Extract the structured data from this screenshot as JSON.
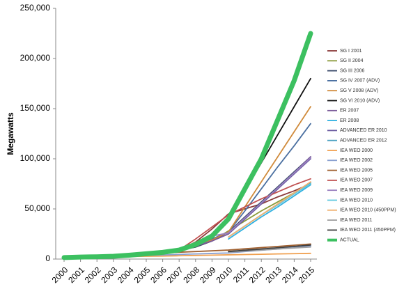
{
  "chart_data": {
    "type": "line",
    "y_label": "Megawatts",
    "x": [
      2000,
      2001,
      2002,
      2003,
      2004,
      2005,
      2006,
      2007,
      2008,
      2009,
      2010,
      2011,
      2012,
      2013,
      2014,
      2015
    ],
    "ylim": [
      0,
      250000
    ],
    "yticks": [
      0,
      {
        "value": 50000,
        "label": "50,000"
      },
      {
        "value": 100000,
        "label": "100,000"
      },
      {
        "value": 150000,
        "label": "150,000"
      },
      {
        "value": 200000,
        "label": "200,000"
      },
      {
        "value": 250000,
        "label": "250,000"
      }
    ],
    "legend": "right",
    "series": [
      {
        "name": "SG I 2001",
        "color": "#8b3a3a",
        "values": [
          null,
          2000,
          3000,
          4000,
          5000,
          6000,
          7000,
          9000,
          17000,
          30000,
          45000,
          50000,
          55000,
          62000,
          68000,
          75000
        ]
      },
      {
        "name": "SG II 2004",
        "color": "#8a9a3a",
        "values": [
          null,
          null,
          null,
          null,
          4000,
          5500,
          7000,
          9000,
          12000,
          18000,
          28000,
          38000,
          48000,
          57000,
          66000,
          75000
        ]
      },
      {
        "name": "SG III 2006",
        "color": "#3a4a6a",
        "values": [
          null,
          null,
          null,
          null,
          null,
          null,
          6500,
          8500,
          12000,
          18000,
          27000,
          42000,
          57000,
          72000,
          87000,
          102000
        ]
      },
      {
        "name": "SG IV 2007 (ADV)",
        "color": "#4a6fa0",
        "values": [
          null,
          null,
          null,
          null,
          null,
          null,
          null,
          9000,
          14000,
          20000,
          27000,
          48000,
          70000,
          92000,
          113000,
          135000
        ]
      },
      {
        "name": "SG V 2008 (ADV)",
        "color": "#d08a3a",
        "values": [
          null,
          null,
          null,
          null,
          null,
          null,
          null,
          null,
          13000,
          19000,
          27000,
          52000,
          77000,
          102000,
          127000,
          152000
        ]
      },
      {
        "name": "SG VI 2010 (ADV)",
        "color": "#111111",
        "values": [
          null,
          null,
          null,
          null,
          null,
          null,
          null,
          null,
          null,
          null,
          40000,
          68000,
          96000,
          124000,
          152000,
          180000
        ]
      },
      {
        "name": "ER 2007",
        "color": "#7a5a9a",
        "values": [
          null,
          null,
          null,
          null,
          null,
          null,
          null,
          9000,
          13000,
          18000,
          25000,
          40000,
          55000,
          70000,
          86000,
          102000
        ]
      },
      {
        "name": "ER 2008",
        "color": "#30b0e0",
        "values": [
          null,
          null,
          null,
          null,
          null,
          null,
          null,
          null,
          null,
          null,
          20000,
          31000,
          42000,
          52000,
          63000,
          74000
        ]
      },
      {
        "name": "ADVANCED ER 2010",
        "color": "#6a5aa0",
        "values": [
          null,
          null,
          null,
          null,
          null,
          null,
          null,
          null,
          null,
          null,
          25000,
          40000,
          55000,
          70000,
          85000,
          100000
        ]
      },
      {
        "name": "ADVANCED ER 2012",
        "color": "#4aa0c0",
        "values": [
          null,
          null,
          null,
          null,
          null,
          null,
          null,
          null,
          null,
          null,
          22000,
          33000,
          44000,
          54000,
          65000,
          76000
        ]
      },
      {
        "name": "IEA WEO 2000",
        "color": "#f0a050",
        "values": [
          1500,
          1800,
          2000,
          2300,
          2500,
          2800,
          3000,
          3300,
          3600,
          3900,
          4200,
          4500,
          4800,
          5100,
          5400,
          5700
        ]
      },
      {
        "name": "IEA WEO 2002",
        "color": "#8aa0d0",
        "values": [
          null,
          null,
          2300,
          2700,
          3100,
          3600,
          4100,
          4600,
          5100,
          5600,
          6100,
          7500,
          8800,
          10000,
          11500,
          13000
        ]
      },
      {
        "name": "IEA WEO 2005",
        "color": "#a06030",
        "values": [
          null,
          null,
          null,
          null,
          null,
          5300,
          6000,
          6800,
          7500,
          8200,
          9000,
          10200,
          11400,
          12600,
          13800,
          15000
        ]
      },
      {
        "name": "IEA WEO 2007",
        "color": "#c05050",
        "values": [
          null,
          null,
          null,
          null,
          null,
          null,
          null,
          9000,
          20000,
          32000,
          44000,
          52000,
          60000,
          67000,
          74000,
          80000
        ]
      },
      {
        "name": "IEA WEO 2009",
        "color": "#9a80c0",
        "values": [
          null,
          null,
          null,
          null,
          null,
          null,
          null,
          null,
          null,
          23000,
          26000,
          41000,
          56000,
          71000,
          86000,
          101000
        ]
      },
      {
        "name": "IEA WEO 2010",
        "color": "#60c8e0",
        "values": [
          null,
          null,
          null,
          null,
          null,
          null,
          null,
          null,
          null,
          null,
          22000,
          33000,
          44000,
          54000,
          65000,
          75000
        ]
      },
      {
        "name": "IEA WEO 2010 (450PPM)",
        "color": "#f0b070",
        "values": [
          null,
          null,
          null,
          null,
          null,
          null,
          null,
          null,
          null,
          null,
          22000,
          33000,
          44000,
          55000,
          66000,
          77000
        ]
      },
      {
        "name": "IEA WEO 2011",
        "color": "#a0a0a0",
        "values": [
          null,
          null,
          null,
          null,
          null,
          null,
          null,
          null,
          null,
          null,
          7000,
          8000,
          9000,
          10000,
          11000,
          12000
        ]
      },
      {
        "name": "IEA WEO 2011 (450PPM)",
        "color": "#404040",
        "values": [
          null,
          null,
          null,
          null,
          null,
          null,
          null,
          null,
          null,
          null,
          7500,
          8800,
          10000,
          11300,
          12600,
          14000
        ]
      },
      {
        "name": "ACTUAL",
        "color": "#3cc060",
        "values": [
          1500,
          2000,
          2300,
          2800,
          3900,
          5300,
          6700,
          9000,
          14500,
          23000,
          40000,
          70000,
          100000,
          139000,
          178000,
          225000
        ]
      }
    ]
  }
}
